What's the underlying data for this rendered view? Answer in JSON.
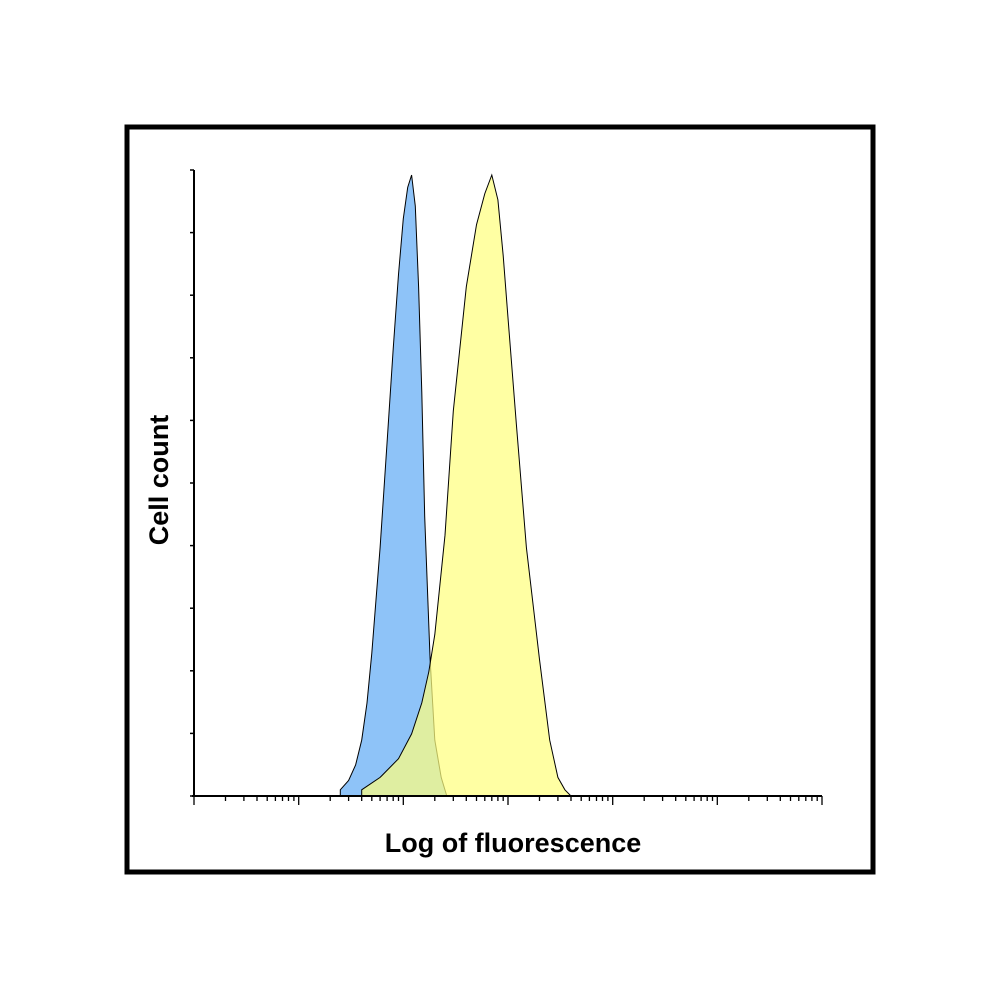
{
  "chart_data": {
    "type": "area",
    "title": "",
    "xlabel": "Log of fluorescence",
    "ylabel": "Cell count",
    "x_scale": "log",
    "xlim": [
      1,
      1000000
    ],
    "ylim": [
      0,
      1
    ],
    "grid": false,
    "legend": "none",
    "series": [
      {
        "color": "#8ec3f8",
        "x": [
          25,
          30,
          35,
          40,
          45,
          50,
          60,
          70,
          80,
          90,
          100,
          110,
          120,
          130,
          140,
          150,
          160,
          180,
          200,
          230,
          260
        ],
        "y": [
          0.01,
          0.025,
          0.05,
          0.09,
          0.15,
          0.23,
          0.4,
          0.57,
          0.72,
          0.84,
          0.93,
          0.98,
          1.0,
          0.95,
          0.82,
          0.65,
          0.45,
          0.22,
          0.09,
          0.03,
          0.0
        ]
      },
      {
        "color": "#ffff80",
        "x": [
          40,
          60,
          90,
          120,
          150,
          175,
          200,
          250,
          300,
          400,
          500,
          600,
          700,
          800,
          900,
          1000,
          1200,
          1500,
          2000,
          2500,
          3000,
          3500,
          4000
        ],
        "y": [
          0.01,
          0.03,
          0.06,
          0.1,
          0.15,
          0.2,
          0.26,
          0.42,
          0.62,
          0.82,
          0.92,
          0.97,
          1.0,
          0.96,
          0.87,
          0.77,
          0.6,
          0.4,
          0.22,
          0.09,
          0.03,
          0.01,
          0.0
        ]
      }
    ]
  }
}
